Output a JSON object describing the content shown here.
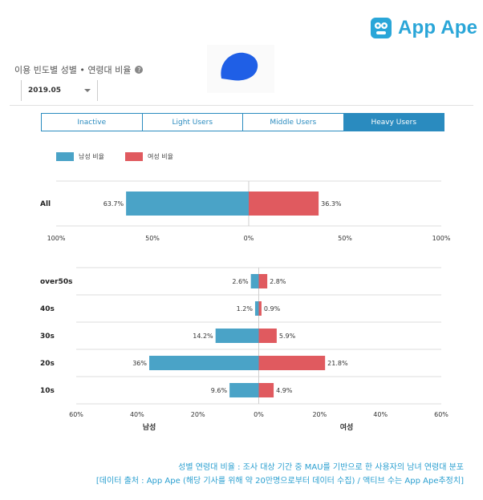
{
  "brand": {
    "name": "App Ape",
    "color": "#2aa6d8"
  },
  "section": {
    "title": "이용 빈도별 성별 • 연령대 비율",
    "help_icon": "question-circle-icon"
  },
  "filter": {
    "selected": "2019.05"
  },
  "tabs": [
    {
      "label": "Inactive",
      "active": false
    },
    {
      "label": "Light Users",
      "active": false
    },
    {
      "label": "Middle Users",
      "active": false
    },
    {
      "label": "Heavy Users",
      "active": true
    }
  ],
  "legend": {
    "male": "남성 비율",
    "female": "여성 비율"
  },
  "colors": {
    "male": "#4aa3c7",
    "female": "#e05a5f",
    "accent": "#2a8bbf"
  },
  "chart_data": [
    {
      "type": "bar",
      "orientation": "horizontal-diverging",
      "categories": [
        "All"
      ],
      "series": [
        {
          "name": "남성 비율",
          "values": [
            63.7
          ],
          "labels": [
            "63.7%"
          ]
        },
        {
          "name": "여성 비율",
          "values": [
            36.3
          ],
          "labels": [
            "36.3%"
          ]
        }
      ],
      "xlim": [
        -100,
        100
      ],
      "xticks": [
        "100%",
        "50%",
        "0%",
        "50%",
        "100%"
      ],
      "grid": true
    },
    {
      "type": "bar",
      "orientation": "horizontal-diverging",
      "categories": [
        "over50s",
        "40s",
        "30s",
        "20s",
        "10s"
      ],
      "series": [
        {
          "name": "남성",
          "values": [
            2.6,
            1.2,
            14.2,
            36,
            9.6
          ],
          "labels": [
            "2.6%",
            "1.2%",
            "14.2%",
            "36%",
            "9.6%"
          ]
        },
        {
          "name": "여성",
          "values": [
            2.8,
            0.9,
            5.9,
            21.8,
            4.9
          ],
          "labels": [
            "2.8%",
            "0.9%",
            "5.9%",
            "21.8%",
            "4.9%"
          ]
        }
      ],
      "xlim": [
        -60,
        60
      ],
      "xticks": [
        "60%",
        "40%",
        "20%",
        "0%",
        "20%",
        "40%",
        "60%"
      ],
      "xlabel_left": "남성",
      "xlabel_right": "여성",
      "grid": true
    }
  ],
  "caption": {
    "line1": "성별 연령대 비율 : 조사 대상 기간 중 MAU를 기반으로 한 사용자의 남녀 연령대 분포",
    "line2": "[데이터 출처 : App Ape (해당 기사를 위해 약 20만명으로부터 데이터 수집) / 액티브 수는 App Ape추정치]"
  }
}
